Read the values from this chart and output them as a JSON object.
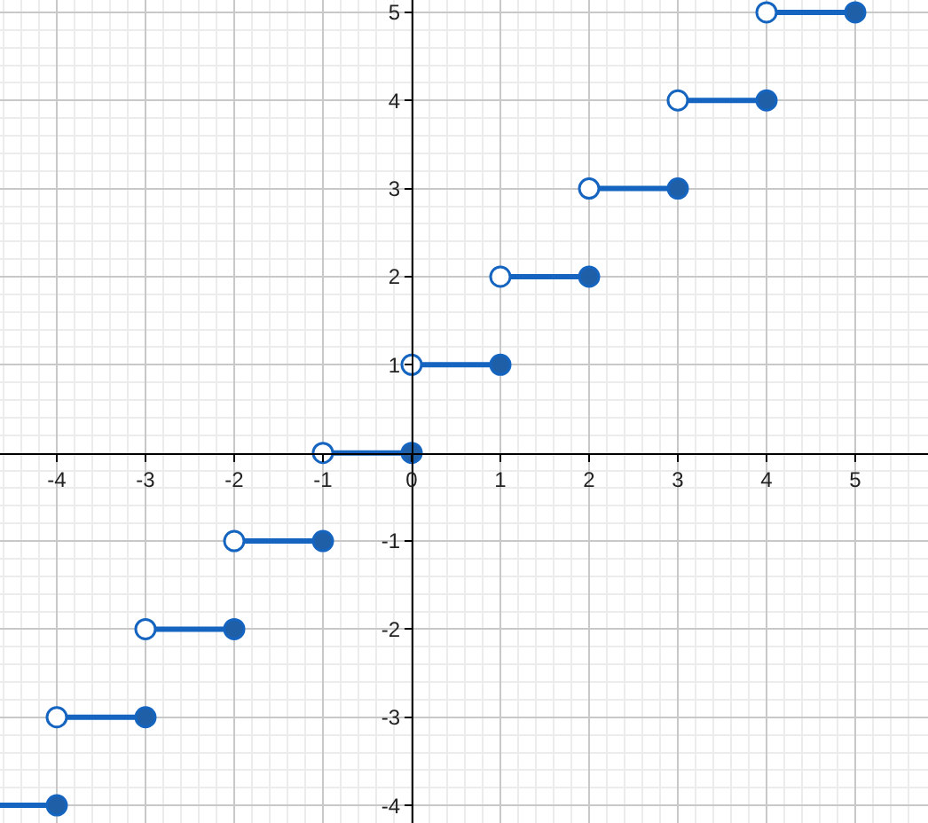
{
  "chart_data": {
    "type": "line",
    "xlim": [
      -4.64,
      5.82
    ],
    "ylim": [
      -4.2,
      5.14
    ],
    "xticks": [
      -4,
      -3,
      -2,
      -1,
      0,
      1,
      2,
      3,
      4,
      5
    ],
    "yticks": [
      -4,
      -3,
      -2,
      -1,
      1,
      2,
      3,
      4,
      5
    ],
    "grid": true,
    "legend": false,
    "series": [
      {
        "color": "#1565c0",
        "x": [
          -4.64,
          -4
        ],
        "values": [
          -4,
          -4
        ]
      },
      {
        "color": "#1565c0",
        "x": [
          -4,
          -3
        ],
        "values": [
          -3,
          -3
        ]
      },
      {
        "color": "#1565c0",
        "x": [
          -3,
          -2
        ],
        "values": [
          -2,
          -2
        ]
      },
      {
        "color": "#1565c0",
        "x": [
          -2,
          -1
        ],
        "values": [
          -1,
          -1
        ]
      },
      {
        "color": "#1565c0",
        "x": [
          -1,
          0
        ],
        "values": [
          0,
          0
        ]
      },
      {
        "color": "#1565c0",
        "x": [
          0,
          1
        ],
        "values": [
          1,
          1
        ]
      },
      {
        "color": "#1565c0",
        "x": [
          1,
          2
        ],
        "values": [
          2,
          2
        ]
      },
      {
        "color": "#1565c0",
        "x": [
          2,
          3
        ],
        "values": [
          3,
          3
        ]
      },
      {
        "color": "#1565c0",
        "x": [
          3,
          4
        ],
        "values": [
          4,
          4
        ]
      },
      {
        "color": "#1565c0",
        "x": [
          4,
          5
        ],
        "values": [
          5,
          5
        ]
      },
      {
        "type": "scatter",
        "color": "#ffffff",
        "marker": "circle",
        "x": [
          -4,
          -3,
          -2,
          -1,
          0,
          1,
          2,
          3,
          4
        ],
        "values": [
          -3,
          -2,
          -1,
          0,
          1,
          2,
          3,
          4,
          5
        ]
      },
      {
        "type": "scatter",
        "color": "#1f5fa8",
        "marker": "circle",
        "x": [
          -4,
          -3,
          -2,
          -1,
          0,
          1,
          2,
          3,
          4,
          5
        ],
        "values": [
          -4,
          -3,
          -2,
          -1,
          0,
          1,
          2,
          3,
          4,
          5
        ]
      }
    ]
  }
}
